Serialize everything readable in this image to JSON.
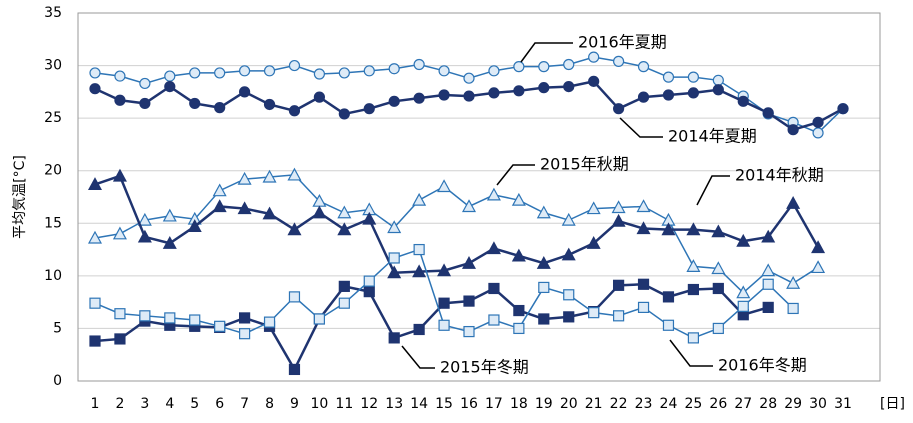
{
  "chart_data": {
    "type": "line",
    "y_label": "平均気温[°C]",
    "x_unit": "[日]",
    "categories": [
      "1",
      "2",
      "3",
      "4",
      "5",
      "6",
      "7",
      "8",
      "9",
      "10",
      "11",
      "12",
      "13",
      "14",
      "15",
      "16",
      "17",
      "18",
      "19",
      "20",
      "21",
      "22",
      "23",
      "24",
      "25",
      "26",
      "27",
      "28",
      "29",
      "30",
      "31"
    ],
    "ylim": [
      0,
      35
    ],
    "yticks": [
      0,
      5,
      10,
      15,
      20,
      25,
      30,
      35
    ],
    "grid": true,
    "series": [
      {
        "name": "2016年夏期",
        "color": "#2e75b6",
        "fill": "#deebf7",
        "marker": "circle",
        "values": [
          29.3,
          29.0,
          28.3,
          29.0,
          29.3,
          29.3,
          29.5,
          29.5,
          30.0,
          29.2,
          29.3,
          29.5,
          29.7,
          30.1,
          29.5,
          28.8,
          29.5,
          29.9,
          29.9,
          30.1,
          30.8,
          30.4,
          29.9,
          28.9,
          28.9,
          28.6,
          27.1,
          25.4,
          24.6,
          23.6,
          25.9
        ]
      },
      {
        "name": "2014年夏期",
        "color": "#1f3470",
        "fill": "#1f3470",
        "marker": "circle",
        "values": [
          27.8,
          26.7,
          26.4,
          28.0,
          26.4,
          26.0,
          27.5,
          26.3,
          25.7,
          27.0,
          25.4,
          25.9,
          26.6,
          26.9,
          27.2,
          27.1,
          27.4,
          27.6,
          27.9,
          28.0,
          28.5,
          25.9,
          27.0,
          27.2,
          27.4,
          27.7,
          26.6,
          25.5,
          23.9,
          24.6,
          25.9
        ]
      },
      {
        "name": "2015年秋期",
        "color": "#2e75b6",
        "fill": "#deebf7",
        "marker": "triangle",
        "values": [
          13.6,
          14.0,
          15.3,
          15.7,
          15.4,
          18.1,
          19.2,
          19.4,
          19.6,
          17.1,
          16.0,
          16.3,
          14.6,
          17.2,
          18.5,
          16.6,
          17.7,
          17.2,
          16.0,
          15.3,
          16.4,
          16.5,
          16.6,
          15.3,
          10.9,
          10.7,
          8.4,
          10.5,
          9.3,
          10.8,
          null
        ]
      },
      {
        "name": "2014年秋期",
        "color": "#1f3470",
        "fill": "#1f3470",
        "marker": "triangle",
        "values": [
          18.7,
          19.5,
          13.7,
          13.1,
          14.7,
          16.6,
          16.4,
          15.9,
          14.4,
          16.0,
          14.4,
          15.4,
          10.3,
          10.4,
          10.5,
          11.2,
          12.6,
          11.9,
          11.2,
          12.0,
          13.1,
          15.2,
          14.5,
          14.4,
          14.4,
          14.2,
          13.3,
          13.7,
          16.9,
          12.7,
          null
        ]
      },
      {
        "name": "2015年冬期",
        "color": "#1f3470",
        "fill": "#1f3470",
        "marker": "square",
        "values": [
          3.8,
          4.0,
          5.7,
          5.3,
          5.2,
          5.1,
          6.0,
          5.2,
          1.1,
          5.9,
          9.0,
          8.5,
          4.1,
          4.9,
          7.4,
          7.6,
          8.8,
          6.7,
          5.9,
          6.1,
          6.6,
          9.1,
          9.2,
          8.0,
          8.7,
          8.8,
          6.3,
          7.0,
          null,
          null,
          null
        ]
      },
      {
        "name": "2016年冬期",
        "color": "#2e75b6",
        "fill": "#deebf7",
        "marker": "square",
        "values": [
          7.4,
          6.4,
          6.2,
          6.0,
          5.8,
          5.2,
          4.5,
          5.6,
          8.0,
          5.9,
          7.4,
          9.5,
          11.7,
          12.5,
          5.3,
          4.7,
          5.8,
          5.0,
          8.9,
          8.2,
          6.5,
          6.2,
          7.0,
          5.3,
          4.1,
          5.0,
          7.1,
          9.2,
          6.9,
          null,
          null
        ]
      }
    ]
  }
}
